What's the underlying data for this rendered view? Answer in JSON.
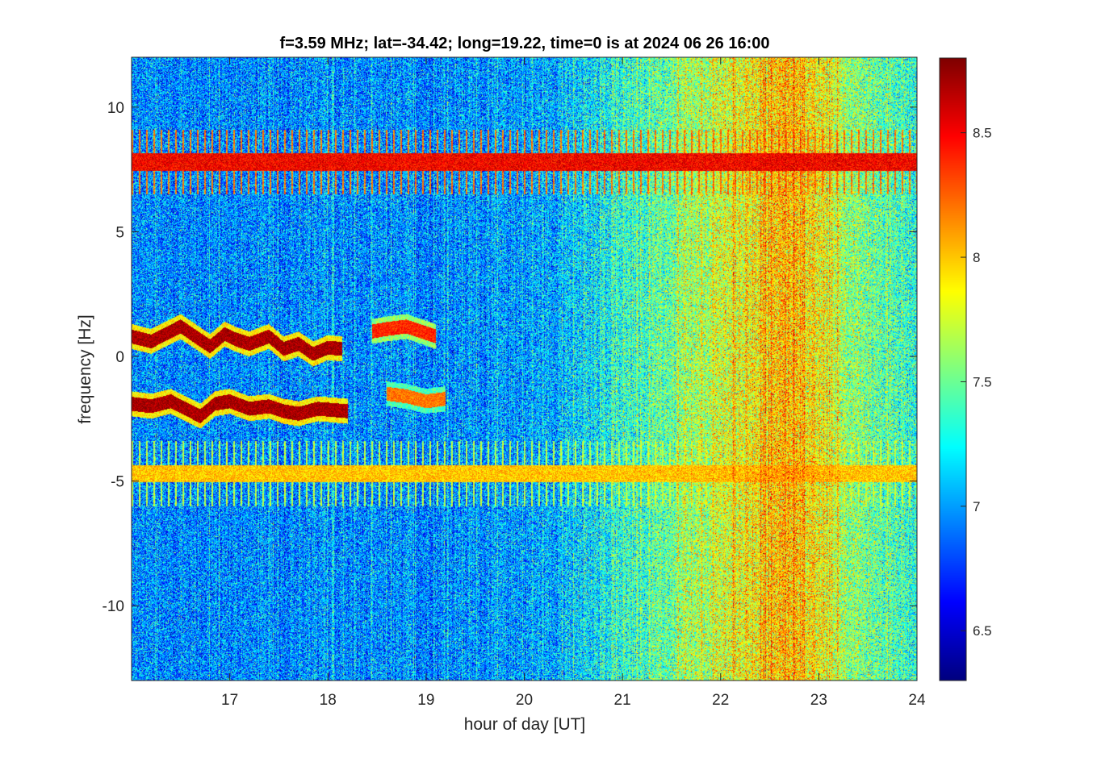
{
  "chart_data": {
    "type": "heatmap",
    "title": "f=3.59 MHz;  lat=-34.42; long=19.22, time=0 is at 2024 06 26 16:00",
    "xlabel": "hour of day [UT]",
    "ylabel": "frequency [Hz]",
    "xlim": [
      16,
      24
    ],
    "ylim": [
      -13,
      12
    ],
    "x_ticks": [
      17,
      18,
      19,
      20,
      21,
      22,
      23,
      24
    ],
    "x_tick_labels": [
      "17",
      "18",
      "19",
      "20",
      "21",
      "22",
      "23",
      "24"
    ],
    "y_ticks": [
      10,
      5,
      0,
      -5,
      -10
    ],
    "y_tick_labels": [
      "10",
      "5",
      "0",
      "-5",
      "-10"
    ],
    "colormap": "jet",
    "clim": [
      6.3,
      8.8
    ],
    "colorbar_ticks": [
      8.5,
      8,
      7.5,
      7,
      6.5
    ],
    "colorbar_tick_labels": [
      "8.5",
      "8",
      "7.5",
      "7",
      "6.5"
    ],
    "background_level": {
      "hours": [
        16,
        17,
        18,
        19,
        20,
        20.5,
        21,
        21.5,
        22,
        22.5,
        22.7,
        23,
        23.5,
        24
      ],
      "values": [
        6.95,
        6.95,
        6.95,
        6.95,
        7.0,
        7.1,
        7.3,
        7.5,
        7.75,
        7.95,
        8.05,
        7.85,
        7.5,
        7.35
      ]
    },
    "features": [
      {
        "kind": "horizontal_line",
        "freq_hz": 7.8,
        "hours": [
          16,
          24
        ],
        "level": 8.6
      },
      {
        "kind": "horizontal_line",
        "freq_hz": -4.7,
        "hours": [
          16,
          24
        ],
        "level": 8.1
      },
      {
        "kind": "trace",
        "level": 8.7,
        "points": [
          [
            16.0,
            0.8
          ],
          [
            16.2,
            0.6
          ],
          [
            16.4,
            1.0
          ],
          [
            16.5,
            1.2
          ],
          [
            16.65,
            0.8
          ],
          [
            16.8,
            0.4
          ],
          [
            16.95,
            0.9
          ],
          [
            17.05,
            0.7
          ],
          [
            17.2,
            0.5
          ],
          [
            17.4,
            0.8
          ],
          [
            17.55,
            0.3
          ],
          [
            17.7,
            0.5
          ],
          [
            17.85,
            0.1
          ],
          [
            18.0,
            0.35
          ],
          [
            18.15,
            0.3
          ]
        ]
      },
      {
        "kind": "trace",
        "level": 8.4,
        "points": [
          [
            18.45,
            1.0
          ],
          [
            18.6,
            1.1
          ],
          [
            18.8,
            1.2
          ],
          [
            18.95,
            1.0
          ],
          [
            19.1,
            0.8
          ]
        ]
      },
      {
        "kind": "trace",
        "level": 8.7,
        "points": [
          [
            16.0,
            -1.9
          ],
          [
            16.2,
            -2.0
          ],
          [
            16.4,
            -1.8
          ],
          [
            16.55,
            -2.1
          ],
          [
            16.7,
            -2.4
          ],
          [
            16.85,
            -1.9
          ],
          [
            17.0,
            -1.8
          ],
          [
            17.2,
            -2.1
          ],
          [
            17.4,
            -2.0
          ],
          [
            17.55,
            -2.2
          ],
          [
            17.7,
            -2.3
          ],
          [
            17.9,
            -2.1
          ],
          [
            18.2,
            -2.2
          ]
        ]
      },
      {
        "kind": "trace",
        "level": 8.2,
        "points": [
          [
            18.6,
            -1.5
          ],
          [
            18.8,
            -1.6
          ],
          [
            19.0,
            -1.8
          ],
          [
            19.2,
            -1.7
          ]
        ]
      }
    ]
  }
}
